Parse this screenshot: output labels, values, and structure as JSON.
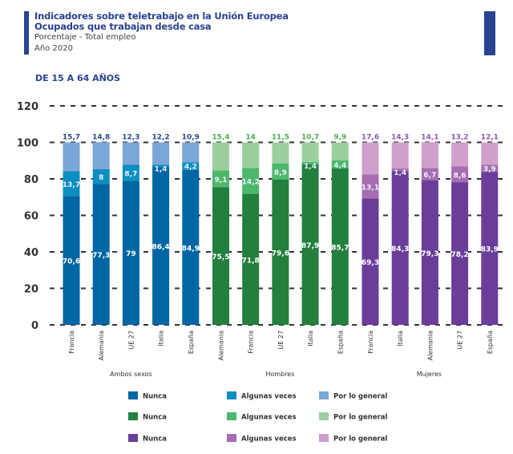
{
  "header": {
    "title1": "Indicadores sobre teletrabajo en la Unión Europea",
    "title2": "Ocupados que trabajan desde casa",
    "subtitle": "Porcentaje - Total empleo",
    "year": "Año 2020",
    "section": "DE 15 A 64 AÑOS"
  },
  "chart_data": {
    "type": "bar",
    "stacked": true,
    "ylim": [
      0,
      120
    ],
    "yticks": [
      0,
      20,
      40,
      60,
      80,
      100,
      120
    ],
    "grid": "dashed horizontal",
    "groups": [
      {
        "name": "Ambos sexos",
        "categories": [
          "Francia",
          "Alemania",
          "UE 27",
          "Italia",
          "España"
        ],
        "series": [
          {
            "name": "Nunca",
            "values": [
              70.6,
              77.3,
              79,
              86.4,
              84.9
            ]
          },
          {
            "name": "Algunas veces",
            "values": [
              13.7,
              8,
              8.7,
              1.4,
              4.2
            ]
          },
          {
            "name": "Por lo general",
            "values": [
              15.7,
              14.8,
              12.3,
              12.2,
              10.9
            ]
          }
        ],
        "colors": [
          "#0066a4",
          "#0a8fc0",
          "#7aa6d8"
        ],
        "label_color": "#2b4a8a"
      },
      {
        "name": "Hombres",
        "categories": [
          "Alemania",
          "Francia",
          "UE 27",
          "Italia",
          "España"
        ],
        "series": [
          {
            "name": "Nunca",
            "values": [
              75.5,
              71.8,
              79.6,
              87.9,
              85.7
            ]
          },
          {
            "name": "Algunas veces",
            "values": [
              9.1,
              14.2,
              8.9,
              1.4,
              4.4
            ]
          },
          {
            "name": "Por lo general",
            "values": [
              15.4,
              14,
              11.5,
              10.7,
              9.9
            ]
          }
        ],
        "colors": [
          "#227f3e",
          "#4cb86a",
          "#9ccf9f"
        ],
        "label_color": "#4caf50"
      },
      {
        "name": "Mujeres",
        "categories": [
          "Francia",
          "Italia",
          "Alemania",
          "UE 27",
          "España"
        ],
        "series": [
          {
            "name": "Nunca",
            "values": [
              69.3,
              84.3,
              79.3,
              78.2,
              83.9
            ]
          },
          {
            "name": "Algunas veces",
            "values": [
              13.1,
              1.4,
              6.7,
              8.6,
              3.9
            ]
          },
          {
            "name": "Por lo general",
            "values": [
              17.6,
              14.3,
              14.1,
              13.2,
              12.1
            ]
          }
        ],
        "colors": [
          "#6a3d9a",
          "#a66db2",
          "#cf9fcb"
        ],
        "label_color": "#8a5cb5"
      }
    ],
    "legend_placement": "bottom"
  }
}
